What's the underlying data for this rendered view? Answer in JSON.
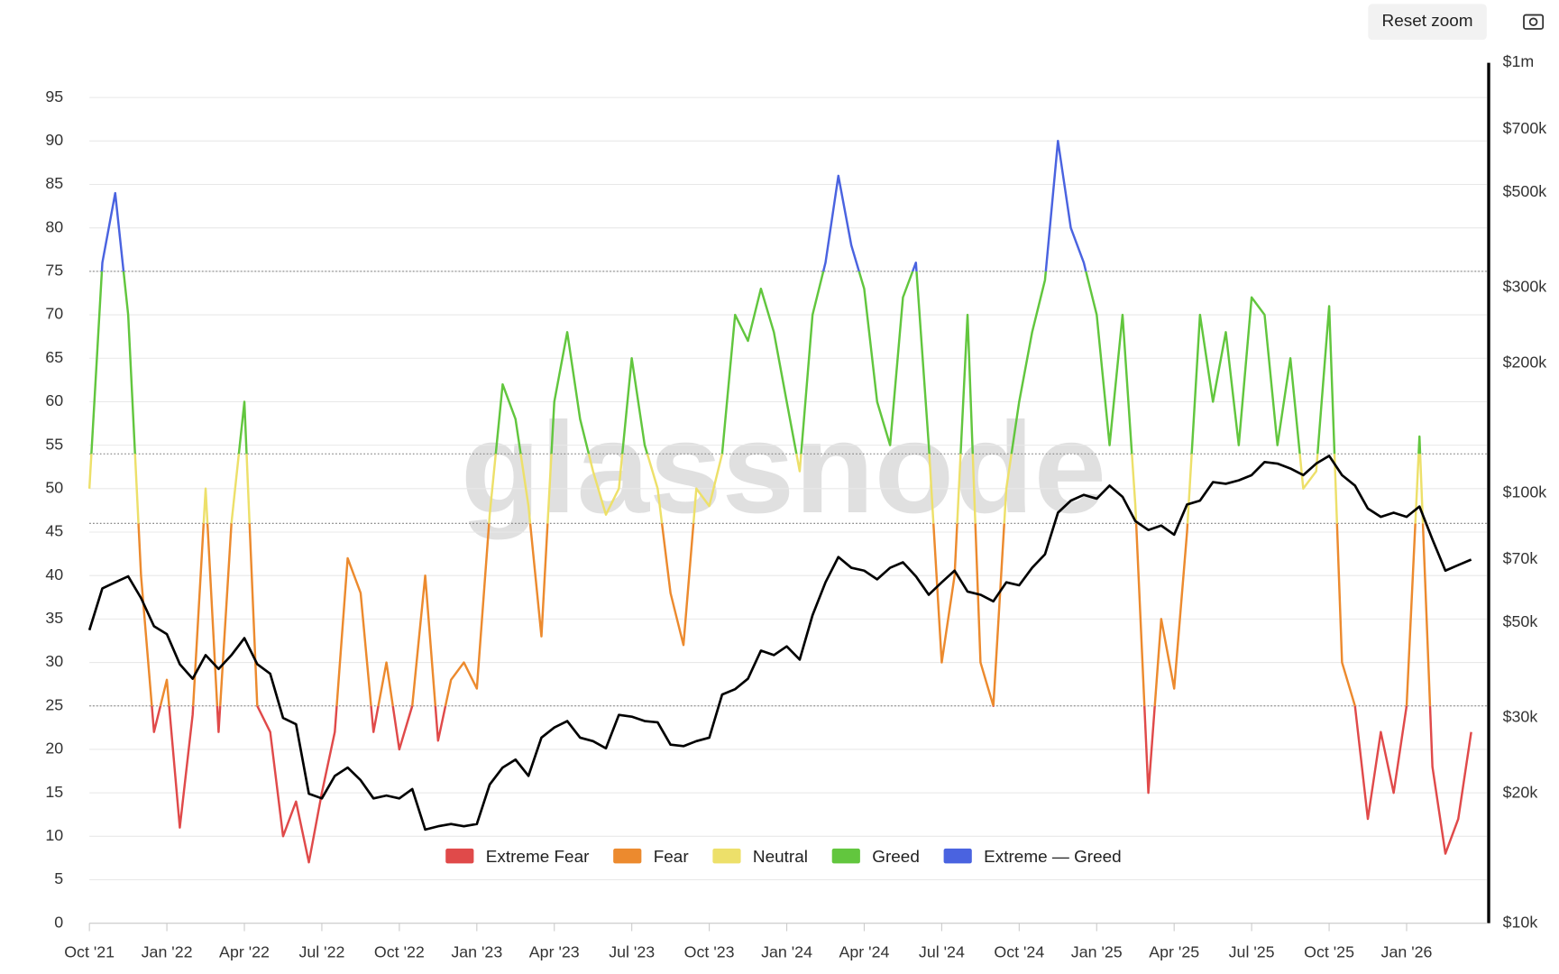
{
  "chart_data": {
    "type": "line",
    "watermark": "glassnode",
    "reset_zoom": "Reset zoom",
    "x": [
      0,
      0.5,
      1,
      1.5,
      2,
      2.5,
      3,
      3.5,
      4,
      4.5,
      5,
      5.5,
      6,
      6.5,
      7,
      7.5,
      8,
      8.5,
      9,
      9.5,
      10,
      10.5,
      11,
      11.5,
      12,
      12.5,
      13,
      13.5,
      14,
      14.5,
      15,
      15.5,
      16,
      16.5,
      17,
      17.5,
      18,
      18.5,
      19,
      19.5,
      20,
      20.5,
      21,
      21.5,
      22,
      22.5,
      23,
      23.5,
      24,
      24.5,
      25,
      25.5,
      26,
      26.5,
      27,
      27.5,
      28,
      28.5,
      29,
      29.5,
      30,
      30.5,
      31,
      31.5,
      32,
      32.5,
      33,
      33.5,
      34,
      34.5,
      35,
      35.5,
      36,
      36.5,
      37,
      37.5,
      38,
      38.5,
      39,
      39.5,
      40,
      40.5,
      41,
      41.5,
      42,
      42.5,
      43,
      43.5,
      44,
      44.5,
      45,
      45.5,
      46,
      46.5,
      47,
      47.5,
      48,
      48.5,
      49,
      49.5,
      50,
      50.5,
      51,
      51.5,
      52,
      52.5,
      53,
      53.5
    ],
    "xlim": [
      0,
      54.1
    ],
    "xticks": [
      {
        "value": 0,
        "label": "Oct '21"
      },
      {
        "value": 3,
        "label": "Jan '22"
      },
      {
        "value": 6,
        "label": "Apr '22"
      },
      {
        "value": 9,
        "label": "Jul '22"
      },
      {
        "value": 12,
        "label": "Oct '22"
      },
      {
        "value": 15,
        "label": "Jan '23"
      },
      {
        "value": 18,
        "label": "Apr '23"
      },
      {
        "value": 21,
        "label": "Jul '23"
      },
      {
        "value": 24,
        "label": "Oct '23"
      },
      {
        "value": 27,
        "label": "Jan '24"
      },
      {
        "value": 30,
        "label": "Apr '24"
      },
      {
        "value": 33,
        "label": "Jul '24"
      },
      {
        "value": 36,
        "label": "Oct '24"
      },
      {
        "value": 39,
        "label": "Jan '25"
      },
      {
        "value": 42,
        "label": "Apr '25"
      },
      {
        "value": 45,
        "label": "Jul '25"
      },
      {
        "value": 48,
        "label": "Oct '25"
      },
      {
        "value": 51,
        "label": "Jan '26"
      }
    ],
    "ylim": [
      0,
      99
    ],
    "yticks": [
      0,
      5,
      10,
      15,
      20,
      25,
      30,
      35,
      40,
      45,
      50,
      55,
      60,
      65,
      70,
      75,
      80,
      85,
      90,
      95
    ],
    "y2lim": [
      10000,
      1000000
    ],
    "y2log": true,
    "y2ticks": [
      {
        "value": 10000,
        "label": "$10k"
      },
      {
        "value": 20000,
        "label": "$20k"
      },
      {
        "value": 30000,
        "label": "$30k"
      },
      {
        "value": 50000,
        "label": "$50k"
      },
      {
        "value": 70000,
        "label": "$70k"
      },
      {
        "value": 100000,
        "label": "$100k"
      },
      {
        "value": 200000,
        "label": "$200k"
      },
      {
        "value": 300000,
        "label": "$300k"
      },
      {
        "value": 500000,
        "label": "$500k"
      },
      {
        "value": 700000,
        "label": "$700k"
      },
      {
        "value": 1000000,
        "label": "$1m"
      }
    ],
    "grid": true,
    "zones": [
      {
        "name": "Extreme Fear",
        "color": "#e04a4a",
        "from": 0,
        "to": 25
      },
      {
        "name": "Fear",
        "color": "#ec8a2e",
        "from": 25,
        "to": 46
      },
      {
        "name": "Neutral",
        "color": "#ede06a",
        "from": 46,
        "to": 54
      },
      {
        "name": "Greed",
        "color": "#62c63e",
        "from": 54,
        "to": 75
      },
      {
        "name": "Extreme — Greed",
        "color": "#4a63e0",
        "from": 75,
        "to": 99
      }
    ],
    "index": {
      "values": [
        50,
        76,
        84,
        70,
        40,
        22,
        28,
        11,
        24,
        50,
        22,
        46,
        60,
        25,
        22,
        10,
        14,
        7,
        15,
        22,
        42,
        38,
        22,
        30,
        20,
        25,
        40,
        21,
        28,
        30,
        27,
        47,
        62,
        58,
        48,
        33,
        60,
        68,
        58,
        52,
        47,
        50,
        65,
        55,
        50,
        38,
        32,
        50,
        48,
        54,
        70,
        67,
        73,
        68,
        60,
        52,
        70,
        76,
        86,
        78,
        73,
        60,
        55,
        72,
        76,
        55,
        30,
        40,
        70,
        30,
        25,
        50,
        60,
        68,
        74,
        90,
        80,
        76,
        70,
        55,
        70,
        48,
        15,
        35,
        27,
        45,
        70,
        60,
        68,
        55,
        72,
        70,
        55,
        65,
        50,
        52,
        71,
        30,
        25,
        12,
        22,
        15,
        25,
        56,
        18,
        8,
        12,
        22
      ]
    },
    "price": {
      "axis": "y2",
      "color": "#000000",
      "values": [
        48000,
        60000,
        62000,
        64000,
        57000,
        49000,
        47000,
        40000,
        37000,
        42000,
        39000,
        42000,
        46000,
        40000,
        38000,
        30000,
        29000,
        20000,
        19500,
        22000,
        23000,
        21500,
        19500,
        19800,
        19500,
        20500,
        16500,
        16800,
        17000,
        16800,
        17000,
        21000,
        23000,
        24000,
        22000,
        27000,
        28500,
        29500,
        27000,
        26500,
        25500,
        30500,
        30200,
        29500,
        29300,
        26000,
        25800,
        26500,
        27000,
        34000,
        35000,
        37000,
        43000,
        42000,
        44000,
        41000,
        52000,
        62000,
        71000,
        67000,
        66000,
        63000,
        67000,
        69000,
        64000,
        58000,
        62000,
        66000,
        59000,
        58000,
        56000,
        62000,
        61000,
        67000,
        72000,
        90000,
        96000,
        99000,
        97000,
        104000,
        98000,
        86000,
        82000,
        84000,
        80000,
        94000,
        96000,
        106000,
        105000,
        107000,
        110000,
        118000,
        117000,
        114000,
        110000,
        117000,
        122000,
        110000,
        104000,
        92000,
        88000,
        90000,
        88000,
        93000,
        78000,
        66000,
        68000,
        70000
      ]
    }
  }
}
